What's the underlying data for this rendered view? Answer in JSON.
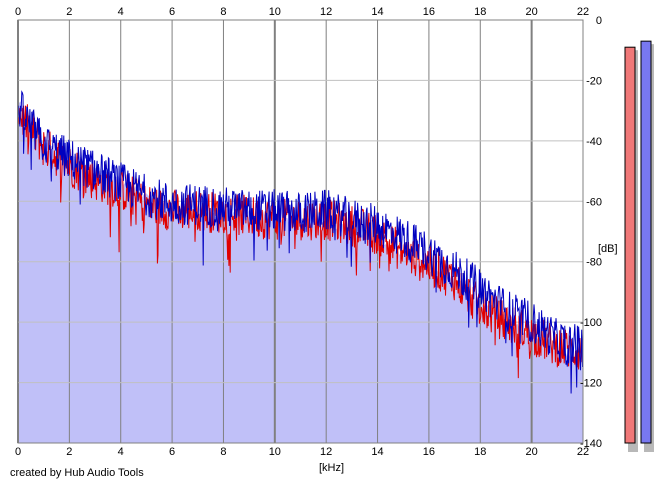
{
  "chart_data": {
    "type": "area",
    "title": "",
    "xlabel": "[kHz]",
    "ylabel": "[dB]",
    "xlim": [
      0,
      22
    ],
    "ylim": [
      -140,
      0
    ],
    "x_ticks": [
      0,
      2,
      4,
      6,
      8,
      10,
      12,
      14,
      16,
      18,
      20,
      22
    ],
    "y_ticks": [
      0,
      -20,
      -40,
      -60,
      -80,
      -100,
      -120,
      -140
    ],
    "grid": true,
    "colors": {
      "plot_bg": "#ffffff",
      "area_fill": "#c0c0f8",
      "grid_major": "#808080",
      "grid_minor": "#c0c0c0",
      "series_red": "#e00000",
      "series_blue": "#0000c0",
      "meter_red": "#f07878",
      "meter_blue": "#7878f0",
      "meter_shadow": "#b8b8b8"
    },
    "envelope": {
      "x": [
        0,
        0.3,
        1,
        2,
        3,
        4,
        5,
        6,
        7,
        8,
        9,
        10,
        11,
        12,
        13,
        14,
        15,
        16,
        17,
        18,
        19,
        20,
        21,
        22
      ],
      "values": [
        -26,
        -32,
        -40,
        -44,
        -49,
        -53,
        -58,
        -61,
        -62,
        -63,
        -64,
        -65,
        -66,
        -67,
        -69,
        -72,
        -77,
        -82,
        -86,
        -93,
        -99,
        -104,
        -110,
        -114
      ]
    },
    "series": [
      {
        "color": "red",
        "x": [
          0,
          0.3,
          1,
          2,
          3,
          4,
          5,
          6,
          7,
          8,
          9,
          10,
          11,
          12,
          13,
          14,
          15,
          16,
          17,
          18,
          19,
          20,
          21,
          22
        ],
        "values": [
          -30,
          -34,
          -42,
          -48,
          -53,
          -56,
          -61,
          -63,
          -63,
          -64,
          -65,
          -66,
          -66,
          -66,
          -68,
          -71,
          -77,
          -81,
          -86,
          -95,
          -100,
          -104,
          -108,
          -110
        ]
      },
      {
        "color": "blue",
        "x": [
          0,
          0.3,
          1,
          2,
          3,
          4,
          5,
          6,
          7,
          8,
          9,
          10,
          11,
          12,
          13,
          14,
          15,
          16,
          17,
          18,
          19,
          20,
          21,
          22
        ],
        "values": [
          -28,
          -33,
          -41,
          -46,
          -50,
          -54,
          -58,
          -61,
          -61,
          -62,
          -63,
          -63,
          -64,
          -63,
          -66,
          -68,
          -72,
          -77,
          -83,
          -89,
          -96,
          -100,
          -106,
          -108
        ]
      }
    ],
    "level_meters": [
      {
        "color": "red",
        "level_db": -9
      },
      {
        "color": "blue",
        "level_db": -7
      }
    ]
  },
  "footer": {
    "credit": "created by Hub Audio Tools"
  }
}
